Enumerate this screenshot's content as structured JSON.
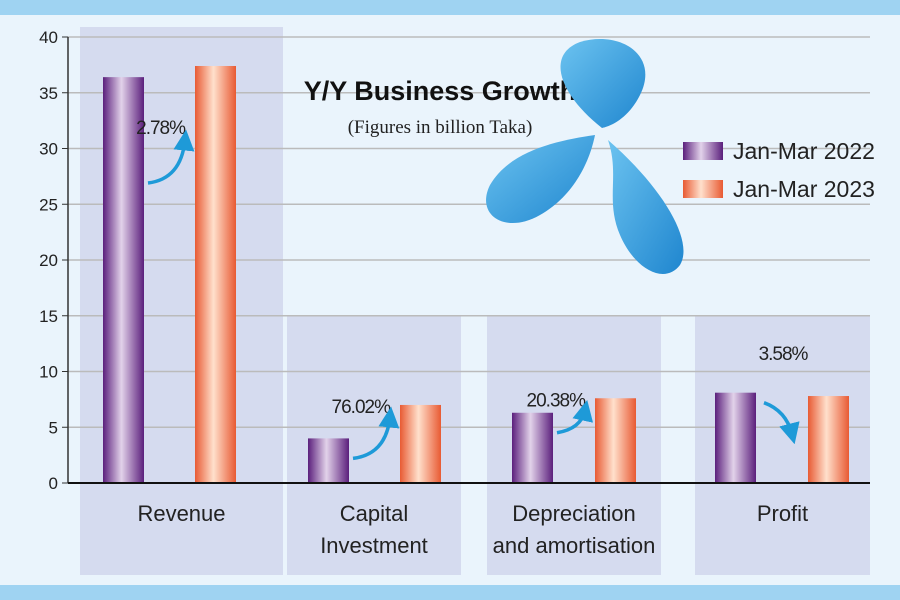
{
  "chart_data": {
    "type": "bar",
    "title": "Y/Y Business Growth",
    "subtitle": "(Figures in billion Taka)",
    "xlabel": "",
    "ylabel": "",
    "ylim": [
      0,
      40
    ],
    "yticks": [
      "0",
      "5",
      "10",
      "15",
      "20",
      "25",
      "30",
      "35",
      "40"
    ],
    "grid": true,
    "legend_position": "top-right",
    "categories": [
      [
        "Revenue"
      ],
      [
        "Capital",
        "Investment"
      ],
      [
        "Depreciation",
        "and amortisation"
      ],
      [
        "Profit"
      ]
    ],
    "series": [
      {
        "name": "Jan-Mar 2022",
        "color": "#6a2c8a",
        "values": [
          36.4,
          4.0,
          6.3,
          8.1
        ]
      },
      {
        "name": "Jan-Mar 2023",
        "color": "#ee6e45",
        "values": [
          37.4,
          7.0,
          7.6,
          7.8
        ]
      }
    ],
    "annotations": [
      {
        "category": "Revenue",
        "text": "2.78%",
        "direction": "up"
      },
      {
        "category": "Capital Investment",
        "text": "76.02%",
        "direction": "up"
      },
      {
        "category": "Depreciation and amortisation",
        "text": "20.38%",
        "direction": "up"
      },
      {
        "category": "Profit",
        "text": "3.58%",
        "direction": "down"
      }
    ],
    "colors": {
      "band": "#9fd3f2",
      "panel": "#d5dbef",
      "arrow": "#1e9ad8",
      "logo": "#3aa3e3"
    }
  }
}
